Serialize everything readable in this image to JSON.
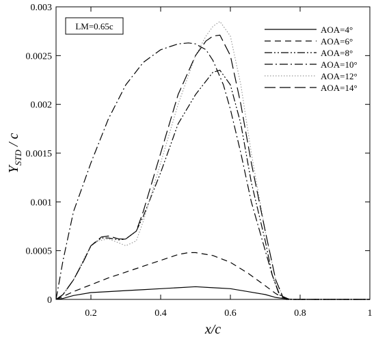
{
  "chart_data": {
    "type": "line",
    "xlabel": "x/c",
    "ylabel": "Y_STD / c",
    "xlim": [
      0.1,
      1.0
    ],
    "ylim": [
      0,
      0.003
    ],
    "xticks": [
      0.2,
      0.4,
      0.6,
      0.8,
      1
    ],
    "xtick_labels": [
      "0.2",
      "0.4",
      "0.6",
      "0.8",
      "1"
    ],
    "yticks": [
      0,
      0.0005,
      0.001,
      0.0015,
      0.002,
      0.0025,
      0.003
    ],
    "ytick_labels": [
      "0",
      "0.0005",
      "0.001",
      "0.0015",
      "0.002",
      "0.0025",
      "0.003"
    ],
    "annotation": "LM=0.65c",
    "legend_position": "top-right",
    "grid": false,
    "series": [
      {
        "name": "AOA=4°",
        "dash": "solid",
        "points": [
          [
            0.1,
            0
          ],
          [
            0.12,
            1e-05
          ],
          [
            0.15,
            4e-05
          ],
          [
            0.2,
            7e-05
          ],
          [
            0.25,
            8e-05
          ],
          [
            0.3,
            9e-05
          ],
          [
            0.35,
            0.0001
          ],
          [
            0.4,
            0.00011
          ],
          [
            0.45,
            0.00012
          ],
          [
            0.5,
            0.00013
          ],
          [
            0.55,
            0.00012
          ],
          [
            0.6,
            0.00011
          ],
          [
            0.65,
            8e-05
          ],
          [
            0.7,
            5e-05
          ],
          [
            0.73,
            2e-05
          ],
          [
            0.75,
            1e-05
          ],
          [
            0.78,
            0
          ],
          [
            1.0,
            0
          ]
        ]
      },
      {
        "name": "AOA=6°",
        "dash": "dash",
        "points": [
          [
            0.1,
            0
          ],
          [
            0.12,
            3e-05
          ],
          [
            0.15,
            8e-05
          ],
          [
            0.2,
            0.00015
          ],
          [
            0.25,
            0.00022
          ],
          [
            0.3,
            0.00028
          ],
          [
            0.35,
            0.00034
          ],
          [
            0.4,
            0.0004
          ],
          [
            0.45,
            0.00046
          ],
          [
            0.48,
            0.00048
          ],
          [
            0.5,
            0.00048
          ],
          [
            0.55,
            0.00045
          ],
          [
            0.6,
            0.00038
          ],
          [
            0.65,
            0.00027
          ],
          [
            0.7,
            0.00014
          ],
          [
            0.73,
            6e-05
          ],
          [
            0.75,
            2e-05
          ],
          [
            0.77,
            0
          ],
          [
            1.0,
            0
          ]
        ]
      },
      {
        "name": "AOA=8°",
        "dash": "dashdotdot",
        "points": [
          [
            0.1,
            0
          ],
          [
            0.12,
            5e-05
          ],
          [
            0.15,
            0.0002
          ],
          [
            0.18,
            0.0004
          ],
          [
            0.2,
            0.00055
          ],
          [
            0.23,
            0.00063
          ],
          [
            0.25,
            0.00063
          ],
          [
            0.28,
            0.00061
          ],
          [
            0.3,
            0.00062
          ],
          [
            0.33,
            0.0007
          ],
          [
            0.35,
            0.00085
          ],
          [
            0.4,
            0.0013
          ],
          [
            0.45,
            0.0018
          ],
          [
            0.5,
            0.0021
          ],
          [
            0.55,
            0.00233
          ],
          [
            0.57,
            0.00235
          ],
          [
            0.6,
            0.0022
          ],
          [
            0.63,
            0.0018
          ],
          [
            0.66,
            0.0012
          ],
          [
            0.7,
            0.0006
          ],
          [
            0.72,
            0.00025
          ],
          [
            0.74,
            5e-05
          ],
          [
            0.76,
            0
          ],
          [
            1.0,
            0
          ]
        ]
      },
      {
        "name": "AOA=10°",
        "dash": "dashdot",
        "points": [
          [
            0.1,
            0
          ],
          [
            0.12,
            0.0004
          ],
          [
            0.15,
            0.0009
          ],
          [
            0.2,
            0.0014
          ],
          [
            0.25,
            0.00185
          ],
          [
            0.3,
            0.0022
          ],
          [
            0.35,
            0.00243
          ],
          [
            0.4,
            0.00256
          ],
          [
            0.45,
            0.00262
          ],
          [
            0.48,
            0.00263
          ],
          [
            0.5,
            0.00262
          ],
          [
            0.53,
            0.00256
          ],
          [
            0.55,
            0.00245
          ],
          [
            0.58,
            0.0022
          ],
          [
            0.6,
            0.00195
          ],
          [
            0.63,
            0.0015
          ],
          [
            0.66,
            0.001
          ],
          [
            0.7,
            0.0005
          ],
          [
            0.72,
            0.00025
          ],
          [
            0.74,
            6e-05
          ],
          [
            0.76,
            0
          ],
          [
            1.0,
            0
          ]
        ]
      },
      {
        "name": "AOA=12°",
        "dash": "dot",
        "points": [
          [
            0.1,
            0
          ],
          [
            0.12,
            5e-05
          ],
          [
            0.15,
            0.0002
          ],
          [
            0.18,
            0.00042
          ],
          [
            0.2,
            0.00055
          ],
          [
            0.22,
            0.0006
          ],
          [
            0.25,
            0.00062
          ],
          [
            0.28,
            0.00058
          ],
          [
            0.3,
            0.00055
          ],
          [
            0.33,
            0.0006
          ],
          [
            0.35,
            0.0008
          ],
          [
            0.4,
            0.0014
          ],
          [
            0.45,
            0.002
          ],
          [
            0.5,
            0.0025
          ],
          [
            0.53,
            0.0027
          ],
          [
            0.55,
            0.0028
          ],
          [
            0.57,
            0.00285
          ],
          [
            0.6,
            0.0027
          ],
          [
            0.63,
            0.0022
          ],
          [
            0.66,
            0.0015
          ],
          [
            0.7,
            0.0007
          ],
          [
            0.73,
            0.0002
          ],
          [
            0.75,
            3e-05
          ],
          [
            0.77,
            0
          ],
          [
            1.0,
            0
          ]
        ]
      },
      {
        "name": "AOA=14°",
        "dash": "longdash",
        "points": [
          [
            0.1,
            0
          ],
          [
            0.12,
            5e-05
          ],
          [
            0.15,
            0.0002
          ],
          [
            0.18,
            0.0004
          ],
          [
            0.2,
            0.00055
          ],
          [
            0.23,
            0.00064
          ],
          [
            0.25,
            0.00065
          ],
          [
            0.28,
            0.00062
          ],
          [
            0.3,
            0.00062
          ],
          [
            0.33,
            0.0007
          ],
          [
            0.35,
            0.0009
          ],
          [
            0.4,
            0.0015
          ],
          [
            0.45,
            0.0021
          ],
          [
            0.5,
            0.0025
          ],
          [
            0.53,
            0.00265
          ],
          [
            0.55,
            0.0027
          ],
          [
            0.57,
            0.00271
          ],
          [
            0.6,
            0.0025
          ],
          [
            0.63,
            0.002
          ],
          [
            0.66,
            0.0014
          ],
          [
            0.7,
            0.0007
          ],
          [
            0.73,
            0.0002
          ],
          [
            0.75,
            3e-05
          ],
          [
            0.77,
            0
          ],
          [
            1.0,
            0
          ]
        ]
      }
    ]
  }
}
